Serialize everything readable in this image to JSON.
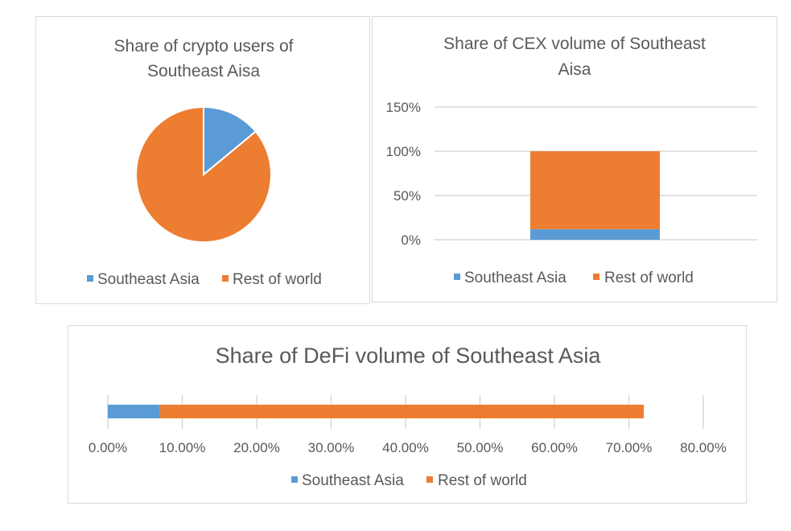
{
  "colors": {
    "southeast_asia": "#5b9bd5",
    "rest_of_world": "#ed7d31",
    "gridline": "#d9d9d9",
    "text": "#595959"
  },
  "chart_data": [
    {
      "type": "pie",
      "title": [
        "Share of crypto users of",
        "Southeast Aisa"
      ],
      "categories": [
        "Southeast Asia",
        "Rest of world"
      ],
      "values": [
        14,
        86
      ],
      "legend": "bottom",
      "legend_labels": [
        "Southeast Asia",
        "Rest of world"
      ]
    },
    {
      "type": "bar",
      "stacked": true,
      "orientation": "vertical",
      "title": [
        "Share of CEX volume of Southeast",
        "Aisa"
      ],
      "series": [
        {
          "name": "Southeast Asia",
          "values": [
            12
          ]
        },
        {
          "name": "Rest of world",
          "values": [
            88
          ]
        }
      ],
      "ylim": [
        0,
        150
      ],
      "y_ticks": [
        0,
        50,
        100,
        150
      ],
      "y_tick_labels": [
        "0%",
        "50%",
        "100%",
        "150%"
      ],
      "grid": true,
      "legend": "bottom",
      "legend_labels": [
        "Southeast Asia",
        "Rest of world"
      ]
    },
    {
      "type": "bar",
      "stacked": true,
      "orientation": "horizontal",
      "title": "Share of DeFi volume of Southeast Asia",
      "series": [
        {
          "name": "Southeast Asia",
          "values": [
            7
          ]
        },
        {
          "name": "Rest of world",
          "values": [
            65
          ]
        }
      ],
      "xlim": [
        0,
        80
      ],
      "x_ticks": [
        0,
        10,
        20,
        30,
        40,
        50,
        60,
        70,
        80
      ],
      "x_tick_labels": [
        "0.00%",
        "10.00%",
        "20.00%",
        "30.00%",
        "40.00%",
        "50.00%",
        "60.00%",
        "70.00%",
        "80.00%"
      ],
      "grid": true,
      "legend": "bottom",
      "legend_labels": [
        "Southeast Asia",
        "Rest of world"
      ]
    }
  ]
}
